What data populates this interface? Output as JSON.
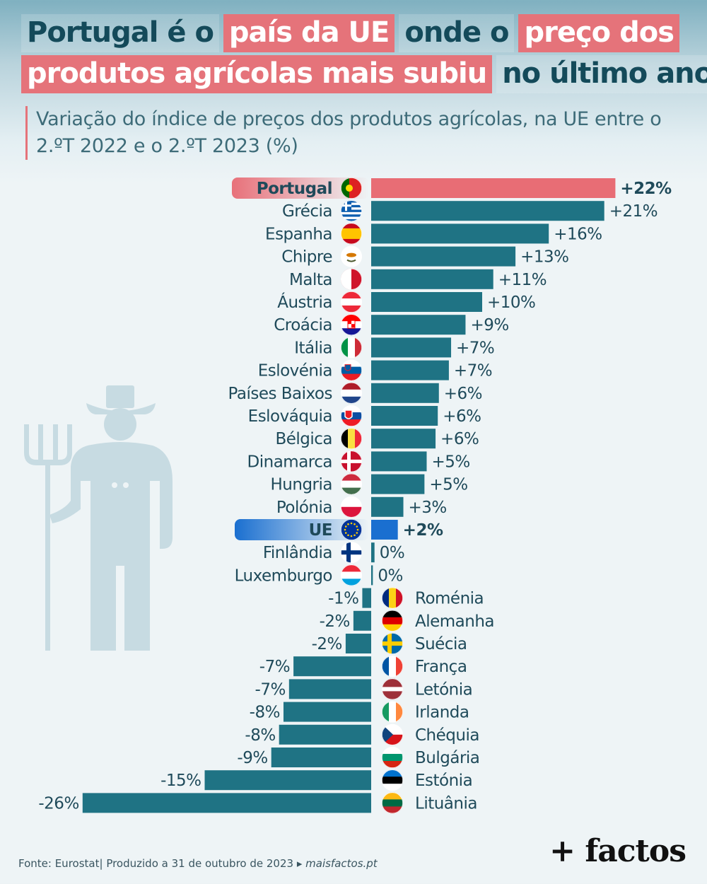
{
  "title": {
    "lines": [
      [
        {
          "text": "Portugal é o",
          "hl": false
        },
        {
          "text": "país da UE",
          "hl": true
        },
        {
          "text": "onde o",
          "hl": false
        },
        {
          "text": "preço dos",
          "hl": true
        }
      ],
      [
        {
          "text": "produtos agrícolas mais subiu",
          "hl": true
        },
        {
          "text": "no último ano",
          "hl": false
        }
      ]
    ]
  },
  "subtitle": "Variação do índice de preços dos produtos agrícolas, na UE entre o 2.ºT 2022 e o 2.ºT 2023 (%)",
  "colors": {
    "bar": "#1f7384",
    "portugal": "#e86d75",
    "eu": "#1a6fd0",
    "text": "#1f4a5a",
    "title_highlight": "#e5737a"
  },
  "chart_data": {
    "type": "bar",
    "orientation": "horizontal",
    "unit": "%",
    "categories": [
      "Portugal",
      "Grécia",
      "Espanha",
      "Chipre",
      "Malta",
      "Áustria",
      "Croácia",
      "Itália",
      "Eslovénia",
      "Países Baixos",
      "Eslováquia",
      "Bélgica",
      "Dinamarca",
      "Hungria",
      "Polónia",
      "UE",
      "Finlândia",
      "Luxemburgo",
      "Roménia",
      "Alemanha",
      "Suécia",
      "França",
      "Letónia",
      "Irlanda",
      "Chéquia",
      "Bulgária",
      "Estónia",
      "Lituânia"
    ],
    "values": [
      22.0,
      21.0,
      16.0,
      13.0,
      11.0,
      10.0,
      8.5,
      7.2,
      7.0,
      6.1,
      6.0,
      5.8,
      5.0,
      4.8,
      2.9,
      2.4,
      0.3,
      0.15,
      -0.8,
      -1.6,
      -2.3,
      -7.0,
      -7.4,
      -7.9,
      -8.3,
      -9.0,
      -15.0,
      -26.0
    ],
    "labels": [
      "+22%",
      "+21%",
      "+16%",
      "+13%",
      "+11%",
      "+10%",
      "+9%",
      "+7%",
      "+7%",
      "+6%",
      "+6%",
      "+6%",
      "+5%",
      "+5%",
      "+3%",
      "+2%",
      "0%",
      "0%",
      "-1%",
      "-2%",
      "-2%",
      "-7%",
      "-7%",
      "-8%",
      "-8%",
      "-9%",
      "-15%",
      "-26%"
    ],
    "highlight": {
      "Portugal": "portugal",
      "UE": "eu"
    },
    "flags": [
      "portugal",
      "greece",
      "spain",
      "cyprus",
      "malta",
      "austria",
      "croatia",
      "italy",
      "slovenia",
      "netherlands",
      "slovakia",
      "belgium",
      "denmark",
      "hungary",
      "poland",
      "eu",
      "finland",
      "luxembourg",
      "romania",
      "germany",
      "sweden",
      "france",
      "latvia",
      "ireland",
      "czechia",
      "bulgaria",
      "estonia",
      "lithuania"
    ]
  },
  "footer": {
    "source": "Fonte: Eurostat",
    "produced": "Produzido a 31 de outubro de 2023",
    "site": "maisfactos.pt"
  },
  "logo": "+ factos"
}
